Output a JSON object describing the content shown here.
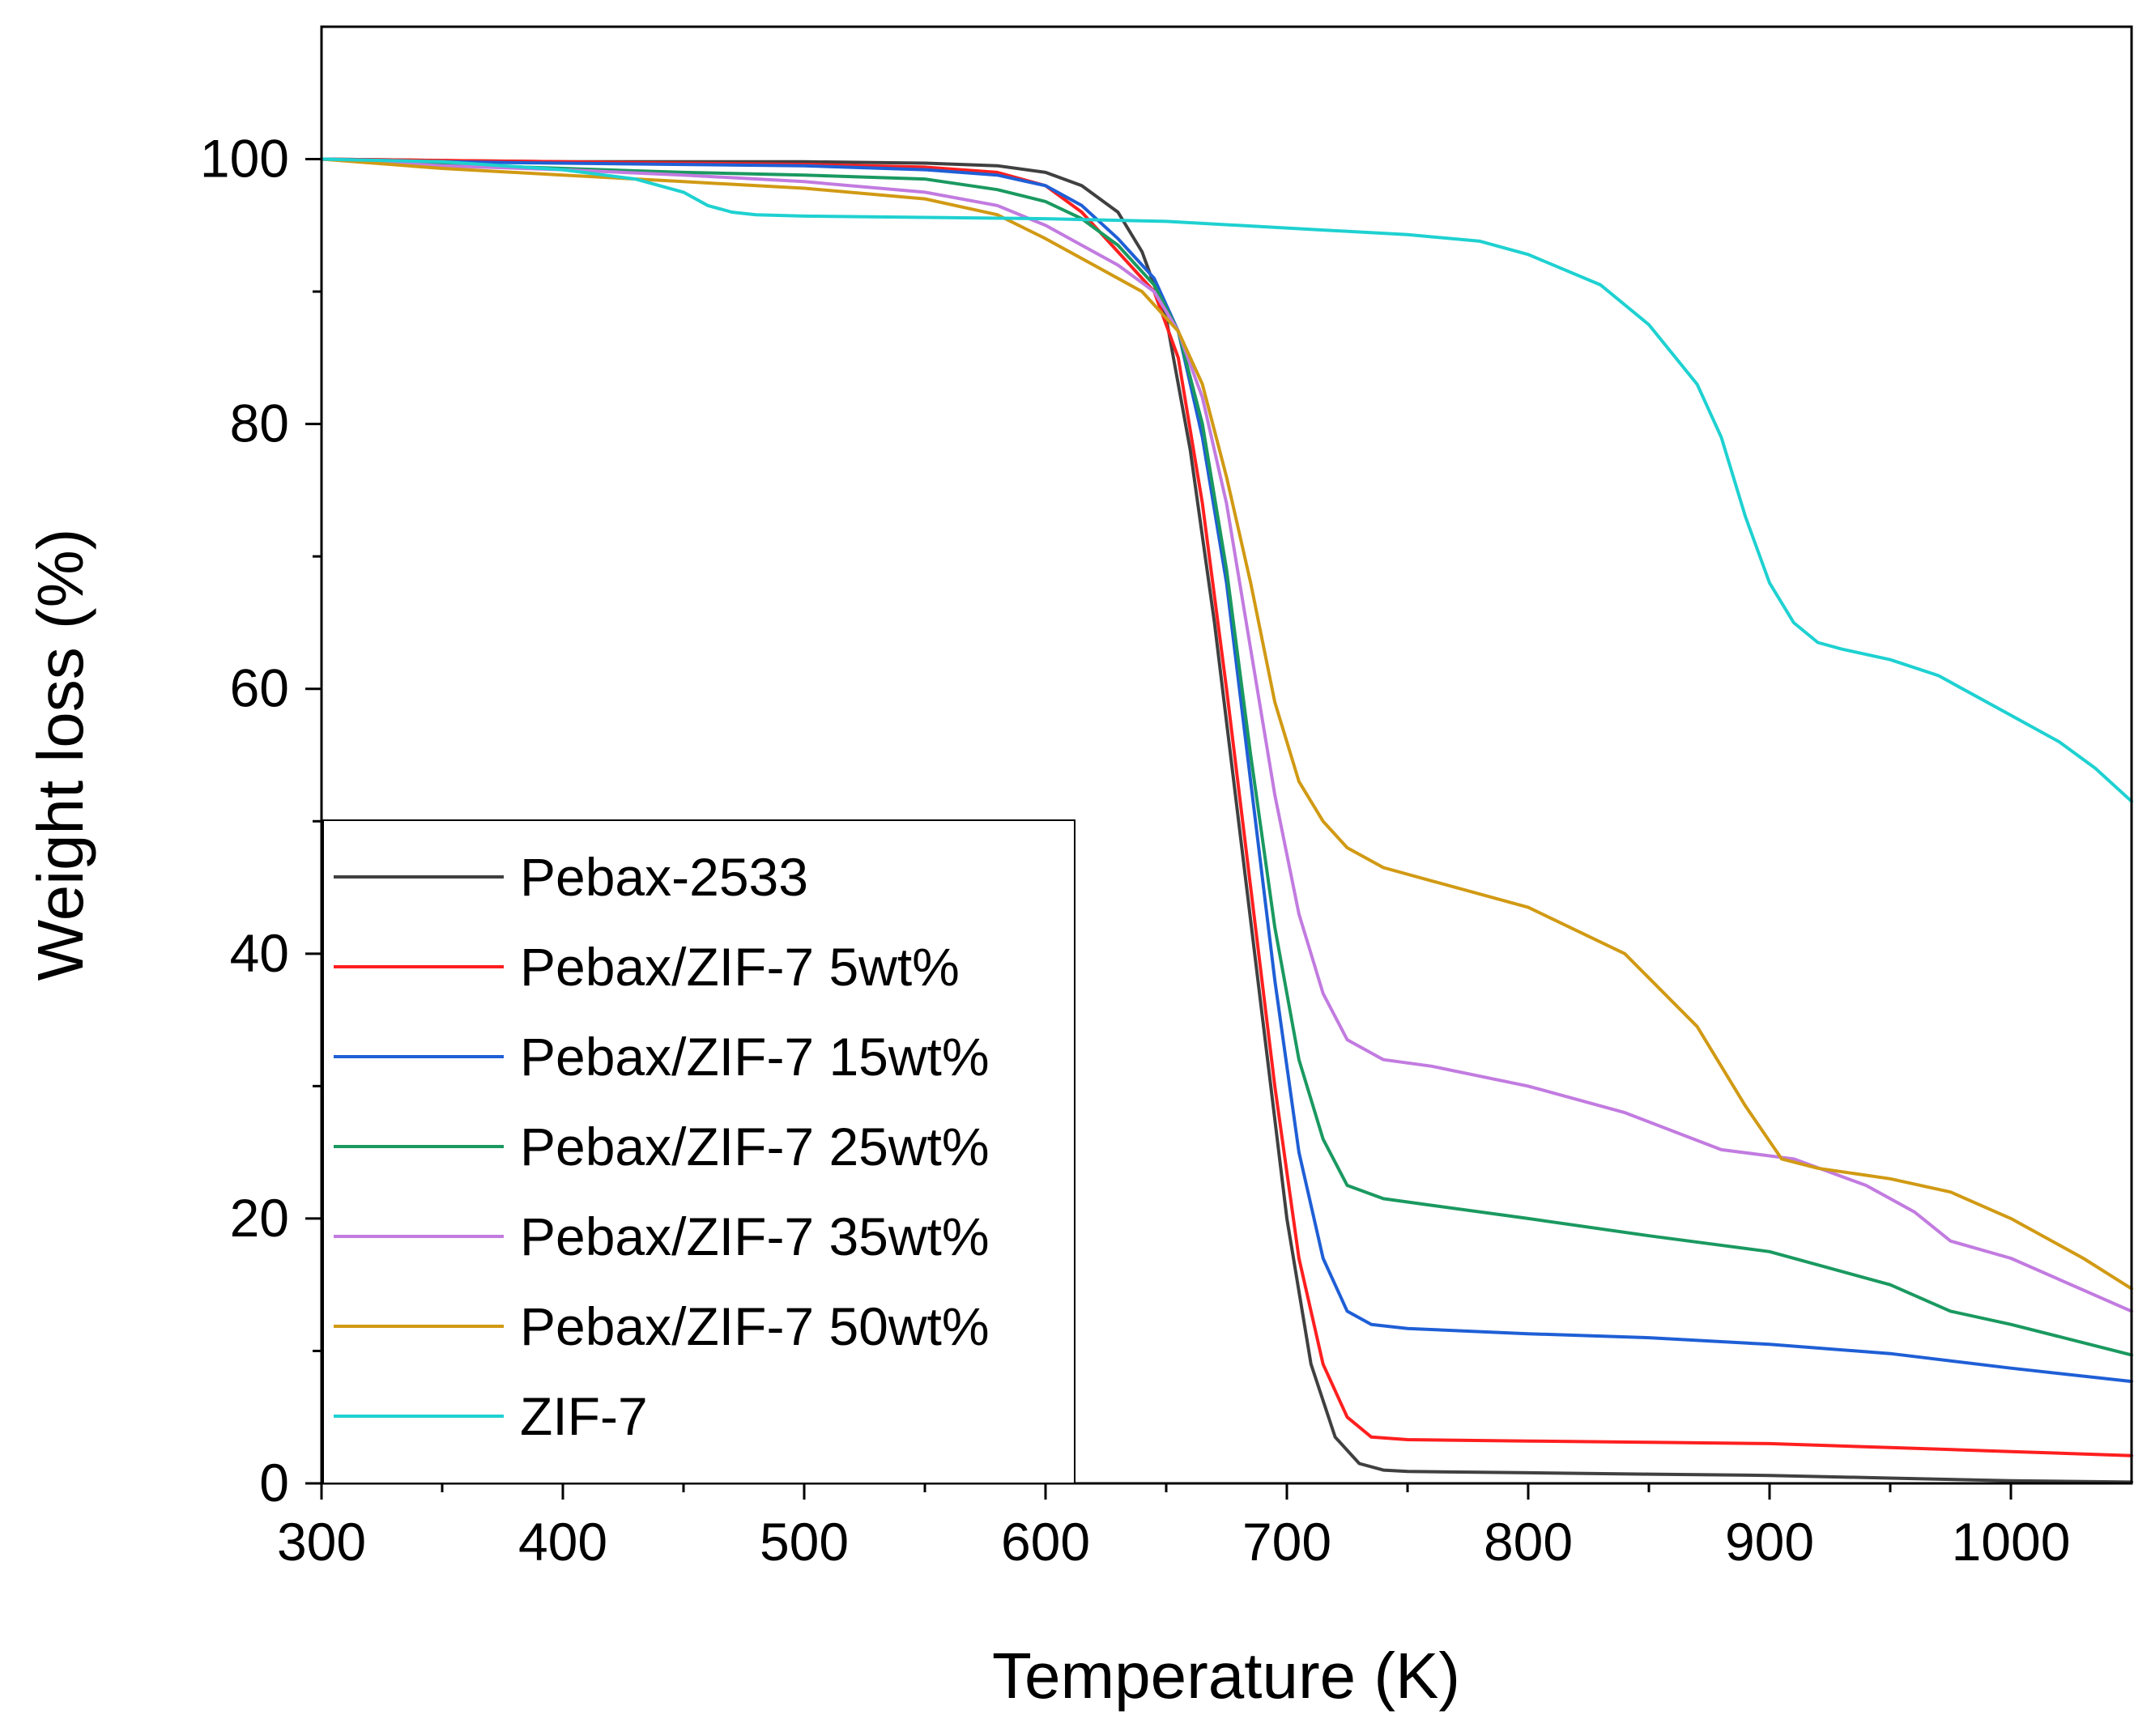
{
  "chart_data": {
    "type": "line",
    "title": "",
    "xlabel": "Temperature (K)",
    "ylabel": "Weight loss (%)",
    "xlim": [
      300,
      1050
    ],
    "ylim": [
      0,
      110
    ],
    "xticks": [
      300,
      400,
      500,
      600,
      700,
      800,
      900,
      1000
    ],
    "yticks": [
      0,
      20,
      40,
      60,
      80,
      100
    ],
    "grid": false,
    "legend_position": "bottom-left",
    "series": [
      {
        "name": "Pebax-2533",
        "color": "#404040",
        "x": [
          300,
          350,
          400,
          450,
          500,
          550,
          580,
          600,
          615,
          630,
          640,
          650,
          660,
          670,
          680,
          690,
          700,
          710,
          720,
          730,
          740,
          750,
          800,
          850,
          900,
          950,
          1000,
          1050
        ],
        "y": [
          100,
          99.9,
          99.8,
          99.8,
          99.8,
          99.7,
          99.5,
          99,
          98,
          96,
          93,
          88,
          78,
          65,
          50,
          35,
          20,
          9,
          3.5,
          1.5,
          1,
          0.9,
          0.8,
          0.7,
          0.6,
          0.4,
          0.2,
          0.1
        ]
      },
      {
        "name": "Pebax/ZIF-7 5wt%",
        "color": "#ff1f1f",
        "x": [
          300,
          350,
          400,
          450,
          500,
          550,
          580,
          600,
          615,
          630,
          645,
          655,
          665,
          675,
          685,
          695,
          705,
          715,
          725,
          735,
          750,
          800,
          850,
          900,
          950,
          1000,
          1050
        ],
        "y": [
          100,
          99.9,
          99.8,
          99.7,
          99.6,
          99.4,
          99,
          98,
          96,
          93,
          90,
          85,
          74,
          60,
          45,
          30,
          17,
          9,
          5,
          3.5,
          3.3,
          3.2,
          3.1,
          3,
          2.7,
          2.4,
          2.1
        ]
      },
      {
        "name": "Pebax/ZIF-7 15wt%",
        "color": "#1f5fd6",
        "x": [
          300,
          350,
          400,
          450,
          500,
          550,
          580,
          600,
          615,
          630,
          645,
          655,
          665,
          675,
          685,
          695,
          705,
          715,
          725,
          735,
          750,
          800,
          850,
          900,
          950,
          1000,
          1050
        ],
        "y": [
          100,
          99.8,
          99.7,
          99.6,
          99.5,
          99.2,
          98.8,
          98,
          96.5,
          94,
          91,
          87,
          79,
          68,
          53,
          38,
          25,
          17,
          13,
          12,
          11.7,
          11.3,
          11,
          10.5,
          9.8,
          8.7,
          7.7
        ]
      },
      {
        "name": "Pebax/ZIF-7 25wt%",
        "color": "#1a9960",
        "x": [
          300,
          350,
          400,
          450,
          500,
          550,
          580,
          600,
          615,
          630,
          645,
          655,
          665,
          675,
          685,
          695,
          705,
          715,
          725,
          740,
          760,
          800,
          850,
          900,
          950,
          975,
          1000,
          1050
        ],
        "y": [
          100,
          99.6,
          99.3,
          99,
          98.8,
          98.5,
          97.7,
          96.8,
          95.5,
          93.5,
          90.5,
          87,
          80,
          69,
          55,
          42,
          32,
          26,
          22.5,
          21.5,
          21,
          20,
          18.7,
          17.5,
          15,
          13,
          12,
          9.7
        ]
      },
      {
        "name": "Pebax/ZIF-7 35wt%",
        "color": "#c27be0",
        "x": [
          300,
          350,
          400,
          450,
          500,
          550,
          580,
          600,
          615,
          630,
          645,
          655,
          665,
          675,
          685,
          695,
          705,
          715,
          725,
          740,
          760,
          800,
          840,
          880,
          910,
          940,
          960,
          975,
          1000,
          1050
        ],
        "y": [
          100,
          99.5,
          99.2,
          98.8,
          98.3,
          97.5,
          96.5,
          95,
          93.5,
          92,
          90,
          87,
          82,
          74,
          63,
          52,
          43,
          37,
          33.5,
          32,
          31.5,
          30,
          28,
          25.2,
          24.5,
          22.5,
          20.5,
          18.3,
          17,
          13
        ]
      },
      {
        "name": "Pebax/ZIF-7 50wt%",
        "color": "#d19a14",
        "x": [
          300,
          350,
          400,
          450,
          500,
          550,
          580,
          600,
          620,
          640,
          655,
          665,
          675,
          685,
          695,
          705,
          715,
          725,
          740,
          760,
          800,
          840,
          870,
          890,
          905,
          920,
          950,
          975,
          1000,
          1030,
          1050
        ],
        "y": [
          100,
          99.3,
          98.8,
          98.3,
          97.8,
          97,
          95.8,
          94,
          92,
          90,
          87,
          83,
          76,
          68,
          59,
          53,
          50,
          48,
          46.5,
          45.5,
          43.5,
          40,
          34.5,
          28.5,
          24.5,
          23.8,
          23,
          22,
          20,
          17,
          14.7
        ]
      },
      {
        "name": "ZIF-7",
        "color": "#1fd1d1",
        "x": [
          300,
          350,
          400,
          430,
          450,
          460,
          470,
          480,
          500,
          550,
          600,
          650,
          700,
          750,
          780,
          800,
          830,
          850,
          870,
          880,
          890,
          900,
          910,
          920,
          930,
          950,
          970,
          1000,
          1020,
          1035,
          1050
        ],
        "y": [
          100,
          99.8,
          99.2,
          98.5,
          97.5,
          96.5,
          96,
          95.8,
          95.7,
          95.6,
          95.5,
          95.3,
          94.8,
          94.3,
          93.8,
          92.8,
          90.5,
          87.5,
          83,
          79,
          73,
          68,
          65,
          63.5,
          63,
          62.2,
          61,
          58,
          56,
          54,
          51.5
        ]
      }
    ]
  }
}
